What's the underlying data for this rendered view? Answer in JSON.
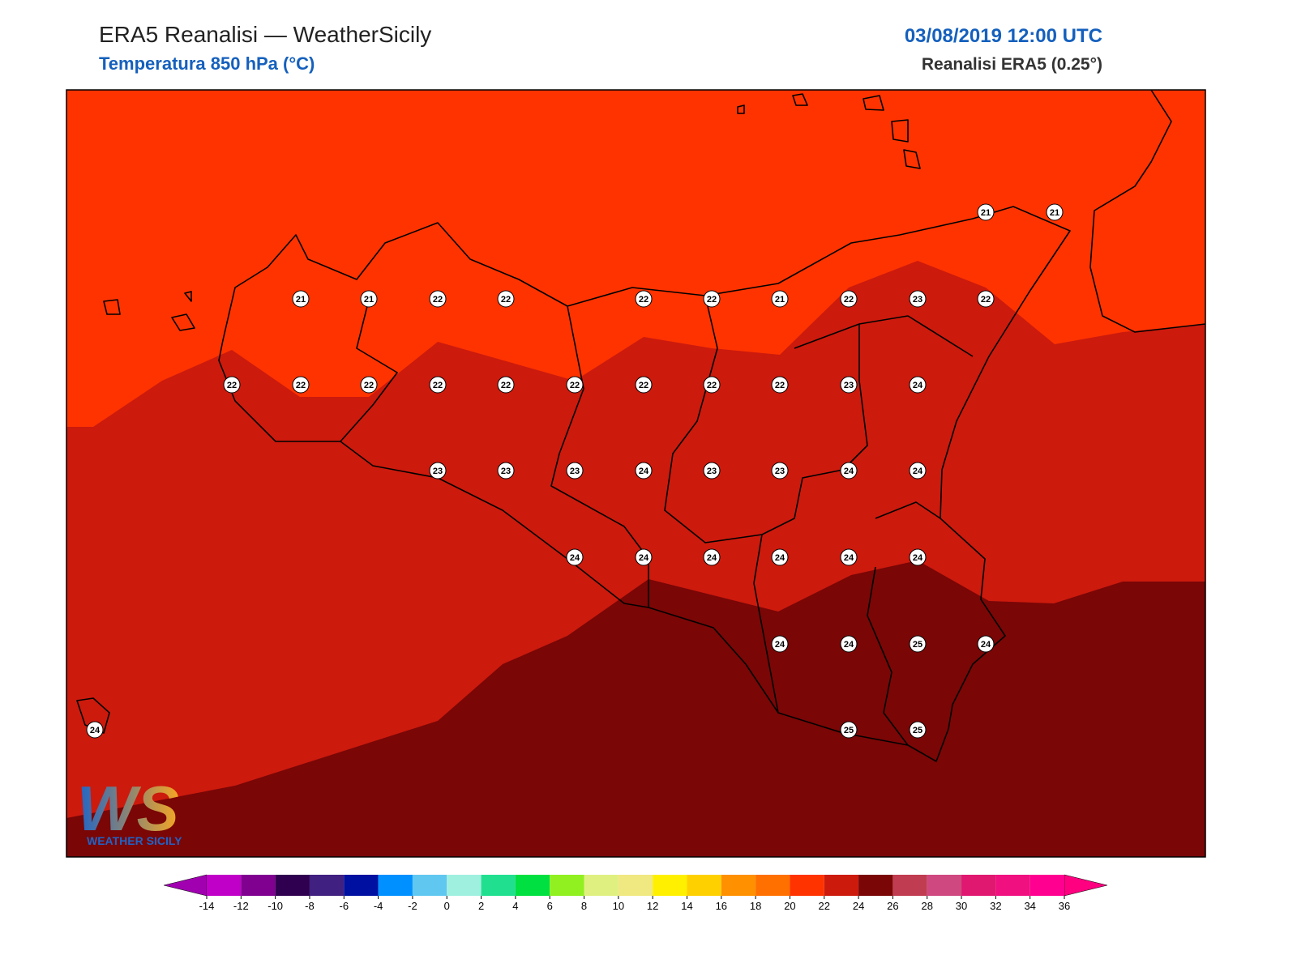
{
  "header": {
    "title": "ERA5 Reanalisi — WeatherSicily",
    "subtitle": "Temperatura 850 hPa (°C)",
    "datetime": "03/08/2019 12:00 UTC",
    "source": "Reanalisi ERA5 (0.25°)"
  },
  "map": {
    "variable": "temperature_850hPa",
    "points": [
      21,
      21,
      21,
      21,
      22,
      22,
      22,
      22,
      21,
      22,
      23,
      22,
      22,
      22,
      22,
      22,
      22,
      22,
      22,
      22,
      22,
      23,
      24,
      23,
      23,
      23,
      24,
      23,
      23,
      24,
      24,
      24,
      24,
      24,
      24,
      24,
      24,
      24,
      24,
      25,
      24,
      24,
      25,
      25
    ]
  },
  "colorbar": {
    "ticks": [
      -14,
      -12,
      -10,
      -8,
      -6,
      -4,
      -2,
      0,
      2,
      4,
      6,
      8,
      10,
      12,
      14,
      16,
      18,
      20,
      22,
      24,
      26,
      28,
      30,
      32,
      34,
      36
    ],
    "colors": [
      "#c000c8",
      "#800090",
      "#300050",
      "#402080",
      "#0010a0",
      "#0090ff",
      "#60c8f0",
      "#a0f0e0",
      "#20e090",
      "#00e040",
      "#90f020",
      "#e0f080",
      "#f0e880",
      "#fff000",
      "#ffd000",
      "#ff9000",
      "#ff7000",
      "#ff3300",
      "#cc1a0d",
      "#7a0606",
      "#c03c50",
      "#d04880",
      "#e01870",
      "#f01080",
      "#ff0090"
    ],
    "under_color": "#a000b0",
    "over_color": "#ff0080"
  },
  "logo": {
    "text": "WEATHER SICILY"
  }
}
